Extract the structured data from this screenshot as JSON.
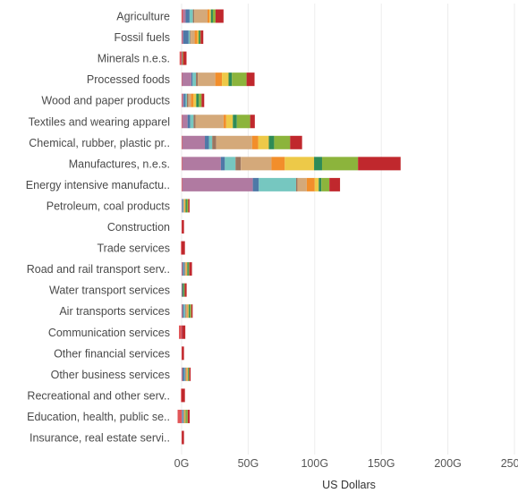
{
  "chart_data": {
    "type": "bar",
    "orientation": "horizontal",
    "stacked": true,
    "xlabel": "US Dollars",
    "x_ticks": [
      "0G",
      "50G",
      "100G",
      "150G",
      "200G",
      "250G"
    ],
    "x_tick_values": [
      0,
      50,
      100,
      150,
      200,
      250
    ],
    "xlim": [
      -2,
      252
    ],
    "grid": true,
    "legend": "none",
    "segment_colors": [
      "#e15759",
      "#b07aa1",
      "#4e79a7",
      "#76c7c0",
      "#9c755f",
      "#d4a97a",
      "#f28e2b",
      "#edc948",
      "#2e8b57",
      "#8cb43c",
      "#c0282d"
    ],
    "categories": [
      "Agriculture",
      "Fossil fuels",
      "Minerals n.e.s.",
      "Processed foods",
      "Wood and paper products",
      "Textiles and wearing apparel",
      "Chemical, rubber, plastic pr..",
      "Manufactures, n.e.s.",
      "Energy intensive manufactu..",
      "Petroleum, coal products",
      "Construction",
      "Trade services",
      "Road and rail transport serv..",
      "Water transport services",
      "Air transports services",
      "Communication services",
      "Other financial services",
      "Other business services",
      "Recreational and other serv..",
      "Education, health, public se..",
      "Insurance, real estate servi.."
    ],
    "segments": [
      [
        1,
        2,
        3,
        2.5,
        1,
        10,
        1.5,
        1,
        1.5,
        2,
        6
      ],
      [
        0.3,
        1,
        4,
        1,
        0.5,
        3,
        2,
        1,
        1,
        0.5,
        2
      ],
      [
        -1.5,
        0.3,
        0.3,
        0,
        0,
        0,
        0.3,
        0,
        0,
        0.3,
        2.5
      ],
      [
        0.3,
        7,
        1,
        2.5,
        1.5,
        13,
        5,
        5,
        2.5,
        11,
        6
      ],
      [
        0.5,
        1,
        1.5,
        1,
        1,
        2,
        2,
        2,
        2,
        2,
        2
      ],
      [
        0.5,
        4,
        2,
        2.5,
        1.5,
        21,
        2,
        5,
        3,
        10,
        3.5
      ],
      [
        0.5,
        17,
        3,
        2.5,
        3,
        27,
        4.5,
        8,
        4,
        12,
        9
      ],
      [
        0.5,
        29,
        3,
        8,
        4,
        23,
        10,
        22,
        6,
        27,
        32
      ],
      [
        0.5,
        53,
        4.5,
        28,
        1,
        7,
        6,
        3,
        2,
        6,
        8
      ],
      [
        0,
        0.5,
        0.5,
        0.5,
        0,
        0.5,
        0.5,
        0.5,
        1,
        1,
        1
      ],
      [
        0.3,
        0,
        0,
        0,
        0,
        0,
        0,
        0,
        0,
        0,
        1.5
      ],
      [
        -0.5,
        0,
        0,
        0,
        0,
        0,
        0,
        0,
        0,
        0,
        2.5
      ],
      [
        0.3,
        0.5,
        1,
        0.5,
        0.5,
        0.5,
        0.5,
        0.5,
        1,
        0.5,
        2
      ],
      [
        0.3,
        0,
        0.5,
        0,
        0,
        0,
        0,
        0,
        1,
        0.5,
        1.5
      ],
      [
        0.3,
        0.5,
        1,
        1,
        0.5,
        1,
        0.5,
        0.5,
        1,
        1,
        1
      ],
      [
        -2,
        0.3,
        0,
        0,
        0,
        0,
        0,
        0,
        0,
        0,
        2.5
      ],
      [
        0.3,
        0,
        0,
        0,
        0,
        0,
        0,
        0,
        0,
        0,
        1.5
      ],
      [
        0.3,
        0.5,
        1.5,
        0.5,
        0.5,
        0.5,
        0.5,
        0.5,
        0.5,
        0.5,
        1
      ],
      [
        -0.5,
        0,
        0,
        0,
        0,
        0,
        0,
        0,
        0,
        0,
        2.5
      ],
      [
        -3,
        0.5,
        0.5,
        0.5,
        0.3,
        0.5,
        0.3,
        0.5,
        0.5,
        1,
        1.5
      ],
      [
        0.3,
        0,
        0,
        0,
        0,
        0,
        0,
        0,
        0,
        0,
        1.5
      ]
    ]
  }
}
